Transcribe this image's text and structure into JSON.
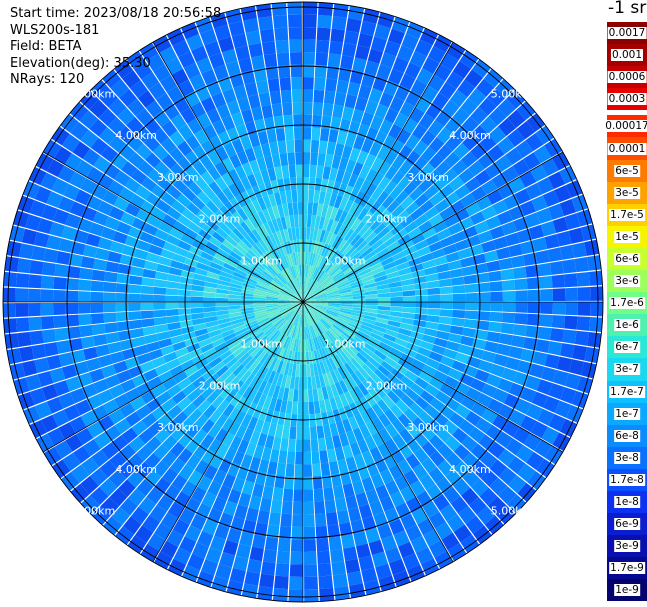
{
  "info": {
    "start_time": "Start time: 2023/08/18 20:56:58",
    "instrument": "WLS200s-181",
    "field": "Field: BETA",
    "elevation": "Elevation(deg): 35.30",
    "nrays": "NRays: 120"
  },
  "unit_label": "-1 sr",
  "ring_labels": [
    "1.00km",
    "2.00km",
    "3.00km",
    "4.00km",
    "5.00km",
    "6.00km"
  ],
  "colorbar": [
    {
      "label": "0.0017",
      "color": "#8b0000"
    },
    {
      "label": "0.001",
      "color": "#a50000"
    },
    {
      "label": "0.0006",
      "color": "#c40000"
    },
    {
      "label": "0.0003",
      "color": "#e60000"
    },
    {
      "label": "0.00017",
      "color": "#ffffff"
    },
    {
      "label": "0.0001",
      "color": "#ff4d00"
    },
    {
      "label": "6e-5",
      "color": "#ff7a00"
    },
    {
      "label": "3e-5",
      "color": "#ffa200"
    },
    {
      "label": "1.7e-5",
      "color": "#ffd000"
    },
    {
      "label": "1e-5",
      "color": "#f5f500"
    },
    {
      "label": "6e-6",
      "color": "#c8ff2e"
    },
    {
      "label": "3e-6",
      "color": "#9cff5a"
    },
    {
      "label": "1.7e-6",
      "color": "#6fff86"
    },
    {
      "label": "1e-6",
      "color": "#4ff0b0"
    },
    {
      "label": "6e-7",
      "color": "#2be8d6"
    },
    {
      "label": "3e-7",
      "color": "#1ad8f0"
    },
    {
      "label": "1.7e-7",
      "color": "#0ec0ff"
    },
    {
      "label": "1e-7",
      "color": "#0aa8ff"
    },
    {
      "label": "6e-8",
      "color": "#0a8cff"
    },
    {
      "label": "3e-8",
      "color": "#0a70ff"
    },
    {
      "label": "1.7e-8",
      "color": "#0a50ff"
    },
    {
      "label": "1e-8",
      "color": "#0a32f0"
    },
    {
      "label": "6e-9",
      "color": "#0a1ed0"
    },
    {
      "label": "3e-9",
      "color": "#0a0fb0"
    },
    {
      "label": "1.7e-9",
      "color": "#060890"
    },
    {
      "label": "1e-9",
      "color": "#03046e"
    }
  ]
}
